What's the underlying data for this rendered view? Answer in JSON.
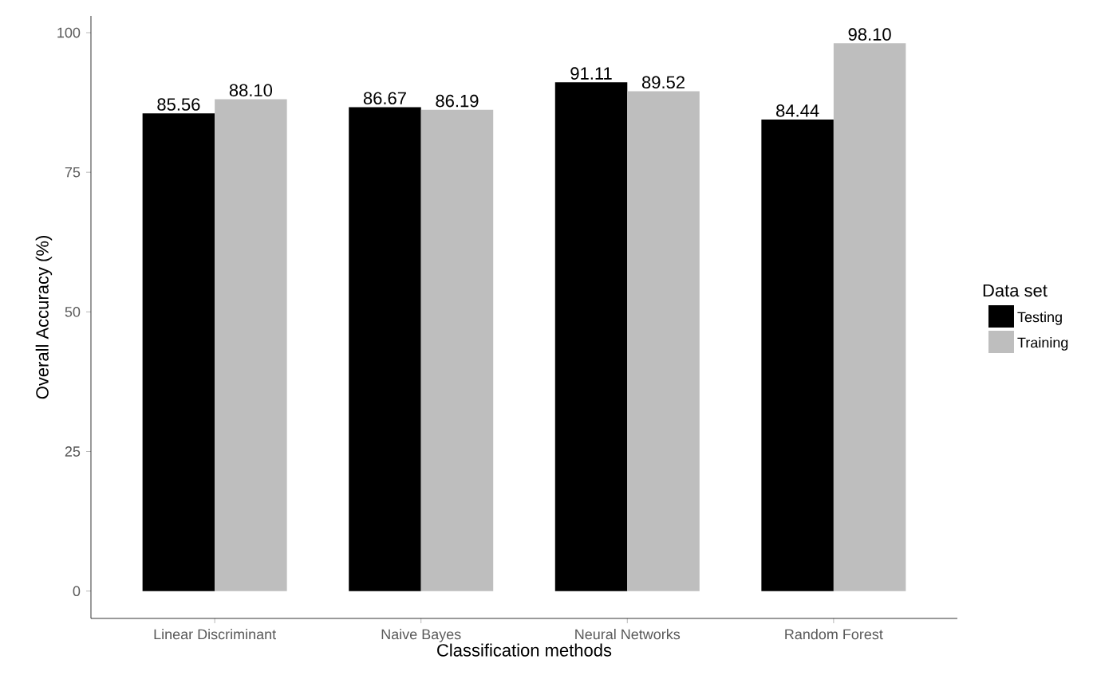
{
  "chart_data": {
    "type": "bar",
    "xlabel": "Classification methods",
    "ylabel": "Overall Accuracy (%)",
    "legend_title": "Data set",
    "categories": [
      "Linear Discriminant",
      "Naive Bayes",
      "Neural Networks",
      "Random Forest"
    ],
    "series": [
      {
        "name": "Testing",
        "color": "#000000",
        "values": [
          85.56,
          86.67,
          91.11,
          84.44
        ],
        "value_labels": [
          "85.56",
          "86.67",
          "91.11",
          "84.44"
        ]
      },
      {
        "name": "Training",
        "color": "#bebebe",
        "values": [
          88.1,
          86.19,
          89.52,
          98.1
        ],
        "value_labels": [
          "88.10",
          "86.19",
          "89.52",
          "98.10"
        ]
      }
    ],
    "ylim": [
      -4.9,
      103
    ],
    "yticks": [
      0,
      25,
      50,
      75,
      100
    ],
    "grid": false,
    "legend": "right"
  }
}
